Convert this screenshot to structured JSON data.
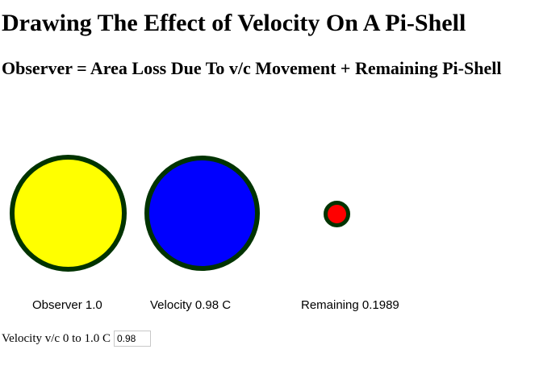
{
  "page": {
    "title": "Drawing The Effect of Velocity On A Pi-Shell",
    "subtitle": "Observer = Area Loss Due To v/c Movement + Remaining Pi-Shell"
  },
  "circles": {
    "border_color": "#003300",
    "observer": {
      "fill_color": "#ffff00",
      "relative_radius": 1.0,
      "label": "Observer 1.0"
    },
    "velocity": {
      "fill_color": "#0000ff",
      "relative_radius": 0.98,
      "label": "Velocity 0.98 C"
    },
    "remaining": {
      "fill_color": "#ff0000",
      "relative_area": 0.1989,
      "label": "Remaining 0.1989"
    }
  },
  "velocity_input": {
    "label": "Velocity v/c 0 to 1.0 C",
    "value": "0.98"
  }
}
